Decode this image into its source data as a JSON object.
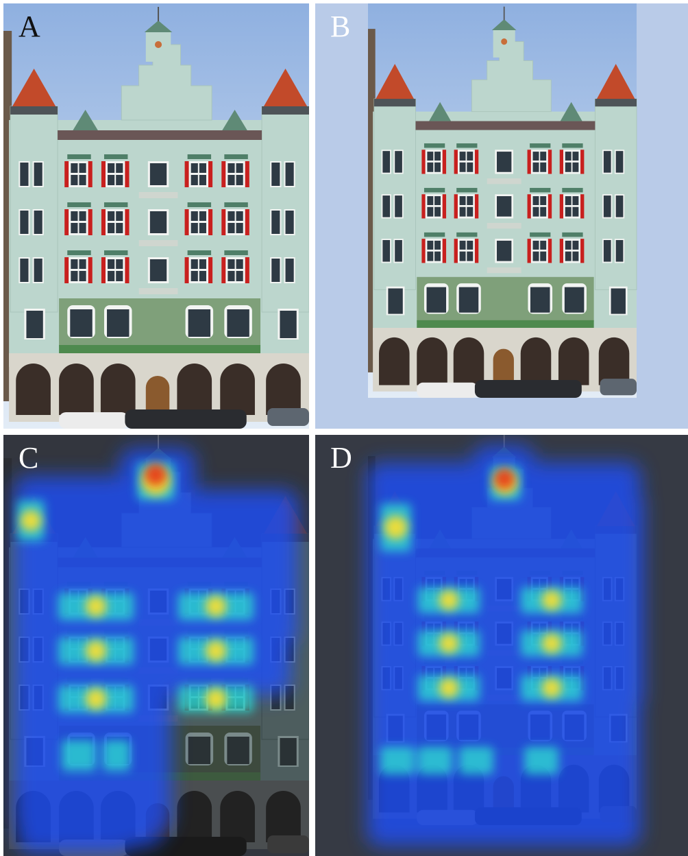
{
  "panels": [
    {
      "label": "A"
    },
    {
      "label": "B"
    },
    {
      "label": "C"
    },
    {
      "label": "D"
    }
  ],
  "colors": {
    "sky": "#b9cbe8",
    "facade": "#bcd6cd",
    "shutter_red": "#c8201e",
    "roof_red": "#c24a2a",
    "dark_bg": "#363a44",
    "heat_low": "#1e50ff",
    "heat_mid": "#2de0d0",
    "heat_high": "#ffe02a",
    "heat_peak": "#e62a12"
  }
}
